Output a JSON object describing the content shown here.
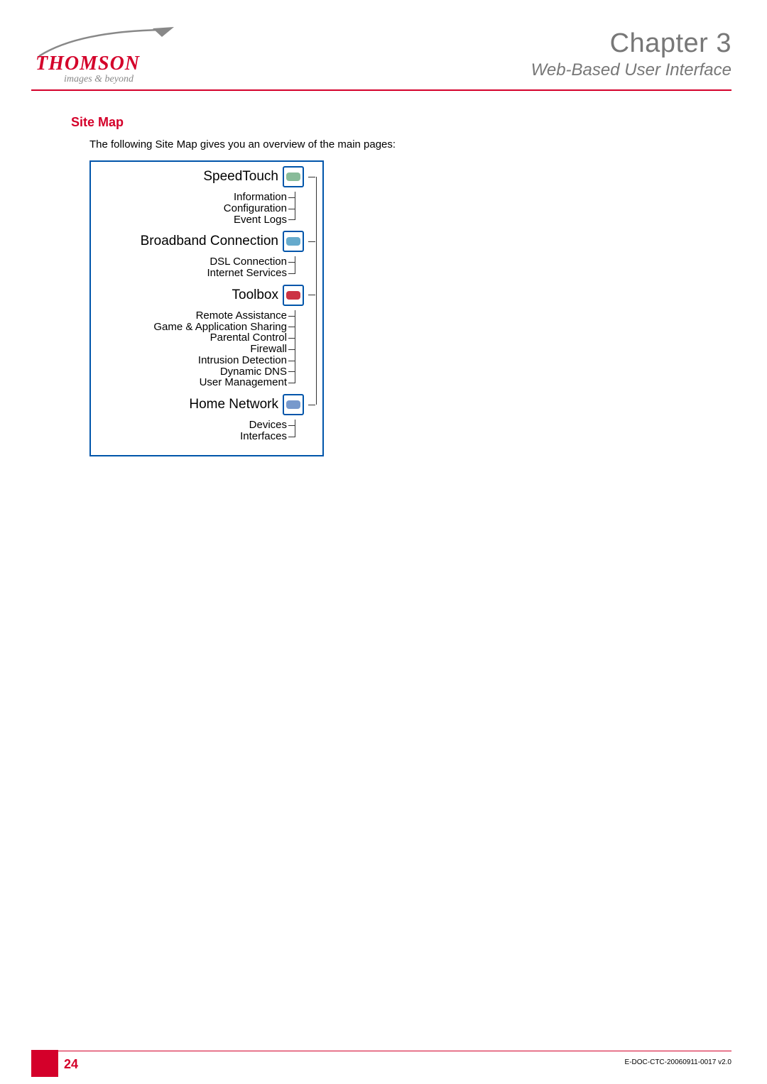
{
  "colors": {
    "brand_red": "#d4002a",
    "grey_text": "#777777",
    "blue_border": "#0055aa",
    "black": "#000000",
    "background": "#ffffff"
  },
  "header": {
    "logo_text": "THOMSON",
    "logo_tagline": "images & beyond",
    "chapter_title": "Chapter 3",
    "chapter_subtitle": "Web-Based User Interface"
  },
  "section": {
    "heading": "Site Map",
    "intro": "The following Site Map gives you an overview of the main pages:"
  },
  "sitemap": {
    "sections": [
      {
        "title": "SpeedTouch",
        "icon_color": "#88bb99",
        "items": [
          "Information",
          "Configuration",
          "Event Logs"
        ]
      },
      {
        "title": "Broadband Connection",
        "icon_color": "#66aacc",
        "items": [
          "DSL Connection",
          "Internet Services"
        ]
      },
      {
        "title": "Toolbox",
        "icon_color": "#cc3344",
        "items": [
          "Remote Assistance",
          "Game & Application Sharing",
          "Parental Control",
          "Firewall",
          "Intrusion Detection",
          "Dynamic DNS",
          "User Management"
        ]
      },
      {
        "title": "Home Network",
        "icon_color": "#7799cc",
        "items": [
          "Devices",
          "Interfaces"
        ]
      }
    ]
  },
  "footer": {
    "page_number": "24",
    "doc_id": "E-DOC-CTC-20060911-0017 v2.0"
  }
}
